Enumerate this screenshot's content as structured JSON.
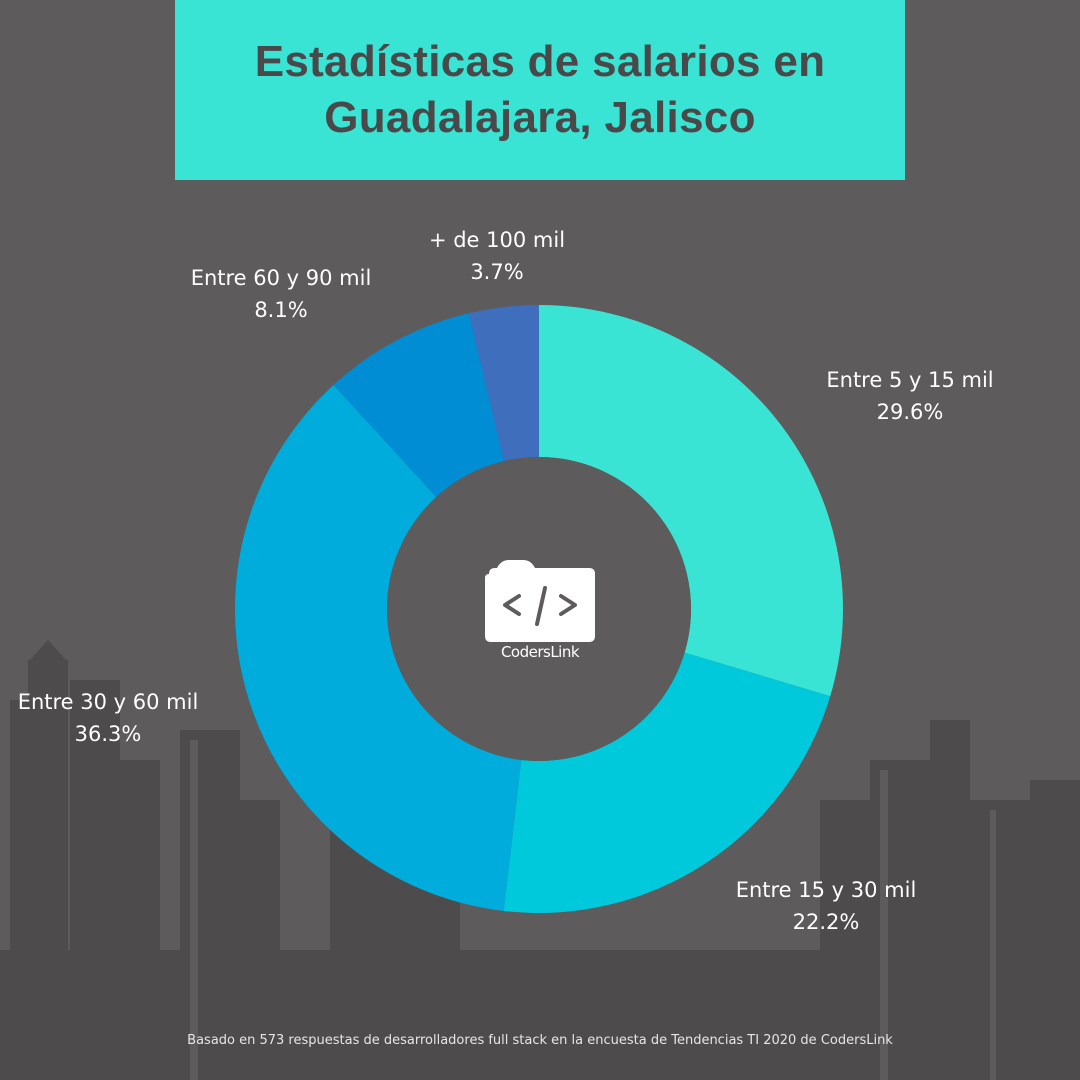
{
  "header": {
    "title_line1": "Estadísticas de salarios en",
    "title_line2": "Guadalajara, Jalisco",
    "background_color": "#39E4D5"
  },
  "logo": {
    "icon": "folder-code-icon",
    "label": "CodersLink"
  },
  "labels": [
    {
      "name": "Entre 5 y 15 mil",
      "pct": "29.6%"
    },
    {
      "name": "Entre 15 y 30 mil",
      "pct": "22.2%"
    },
    {
      "name": "Entre 30 y 60 mil",
      "pct": "36.3%"
    },
    {
      "name": "Entre 60 y 90 mil",
      "pct": "8.1%"
    },
    {
      "name": "+ de 100 mil",
      "pct": "3.7%"
    }
  ],
  "footnote": "Basado en 573 respuestas de desarrolladores full stack en la encuesta de Tendencias TI 2020 de CodersLink",
  "chart_data": {
    "type": "pie",
    "variant": "donut",
    "title": "Estadísticas de salarios en Guadalajara, Jalisco",
    "categories": [
      "Entre 5 y 15 mil",
      "Entre 15 y 30 mil",
      "Entre 30 y 60 mil",
      "Entre 60 y 90 mil",
      "+ de 100 mil"
    ],
    "values": [
      29.6,
      22.2,
      36.3,
      8.1,
      3.7
    ],
    "unit": "%",
    "colors": [
      "#3AE4D4",
      "#00C9DB",
      "#00ACDB",
      "#008DD4",
      "#3F6EBC"
    ],
    "start_angle": "12 o'clock",
    "direction": "clockwise",
    "legend": "none (direct labels)",
    "center_logo": "CodersLink",
    "note": "Basado en 573 respuestas de desarrolladores full stack en la encuesta de Tendencias TI 2020 de CodersLink"
  }
}
